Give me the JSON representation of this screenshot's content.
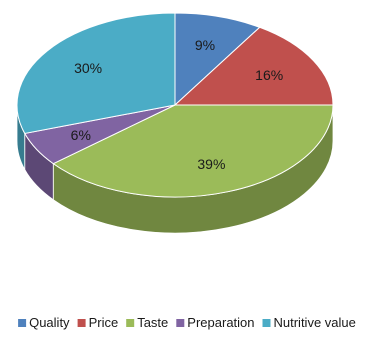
{
  "chart_data": {
    "type": "pie",
    "style": "3d",
    "legend_position": "bottom",
    "slices": [
      {
        "name": "Quality",
        "value": 9,
        "label": "9%",
        "color": "#4f81bd"
      },
      {
        "name": "Price",
        "value": 16,
        "label": "16%",
        "color": "#c0504d"
      },
      {
        "name": "Taste",
        "value": 39,
        "label": "39%",
        "color": "#9bbb59"
      },
      {
        "name": "Preparation",
        "value": 6,
        "label": "6%",
        "color": "#8064a2"
      },
      {
        "name": "Nutritive value",
        "value": 30,
        "label": "30%",
        "color": "#4bacc6"
      }
    ]
  }
}
